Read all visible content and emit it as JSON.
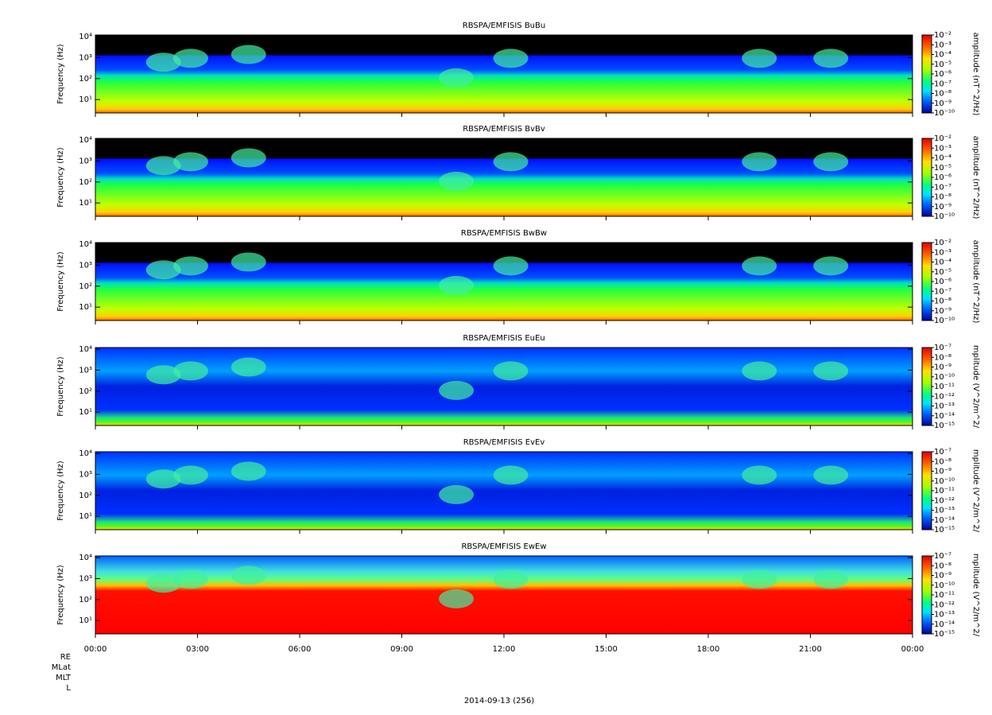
{
  "chart_data": [
    {
      "type": "spectrogram",
      "title": "RBSPA/EMFISIS  BuBu",
      "ylabel": "Frequency (Hz)",
      "log_y": true,
      "ylim": [
        2.3,
        12000
      ],
      "yticks": [
        {
          "value": 10,
          "label": "10¹"
        },
        {
          "value": 100,
          "label": "10²"
        },
        {
          "value": 1000,
          "label": "10³"
        },
        {
          "value": 10000,
          "label": "10⁴"
        }
      ],
      "xlim": [
        0,
        24
      ],
      "xticks": [
        {
          "value": 0,
          "label": "00:00"
        },
        {
          "value": 3,
          "label": "03:00"
        },
        {
          "value": 6,
          "label": "06:00"
        },
        {
          "value": 9,
          "label": "09:00"
        },
        {
          "value": 12,
          "label": "12:00"
        },
        {
          "value": 15,
          "label": "15:00"
        },
        {
          "value": 18,
          "label": "18:00"
        },
        {
          "value": 21,
          "label": "21:00"
        },
        {
          "value": 24,
          "label": "00:00"
        }
      ],
      "zlabel": "amplitude (nT^2/Hz)",
      "zlim": [
        1e-10,
        0.01
      ],
      "zticks": [
        {
          "value": 0.01,
          "label": "10⁻²"
        },
        {
          "value": 0.001,
          "label": "10⁻³"
        },
        {
          "value": 0.0001,
          "label": "10⁻⁴"
        },
        {
          "value": 1e-05,
          "label": "10⁻⁵"
        },
        {
          "value": 1e-06,
          "label": "10⁻⁶"
        },
        {
          "value": 1e-07,
          "label": "10⁻⁷"
        },
        {
          "value": 1e-08,
          "label": "10⁻⁸"
        },
        {
          "value": 1e-09,
          "label": "10⁻⁹"
        },
        {
          "value": 1e-10,
          "label": "10⁻¹⁰"
        }
      ]
    },
    {
      "type": "spectrogram",
      "title": "RBSPA/EMFISIS  BvBv",
      "ylabel": "Frequency (Hz)",
      "log_y": true,
      "ylim": [
        2.3,
        12000
      ],
      "yticks": [
        {
          "value": 10,
          "label": "10¹"
        },
        {
          "value": 100,
          "label": "10²"
        },
        {
          "value": 1000,
          "label": "10³"
        },
        {
          "value": 10000,
          "label": "10⁴"
        }
      ],
      "xlim": [
        0,
        24
      ],
      "xticks": [
        {
          "value": 0,
          "label": "00:00"
        },
        {
          "value": 3,
          "label": "03:00"
        },
        {
          "value": 6,
          "label": "06:00"
        },
        {
          "value": 9,
          "label": "09:00"
        },
        {
          "value": 12,
          "label": "12:00"
        },
        {
          "value": 15,
          "label": "15:00"
        },
        {
          "value": 18,
          "label": "18:00"
        },
        {
          "value": 21,
          "label": "21:00"
        },
        {
          "value": 24,
          "label": "00:00"
        }
      ],
      "zlabel": "amplitude (nT^2/Hz)",
      "zlim": [
        1e-10,
        0.01
      ],
      "zticks": [
        {
          "value": 0.01,
          "label": "10⁻²"
        },
        {
          "value": 0.001,
          "label": "10⁻³"
        },
        {
          "value": 0.0001,
          "label": "10⁻⁴"
        },
        {
          "value": 1e-05,
          "label": "10⁻⁵"
        },
        {
          "value": 1e-06,
          "label": "10⁻⁶"
        },
        {
          "value": 1e-07,
          "label": "10⁻⁷"
        },
        {
          "value": 1e-08,
          "label": "10⁻⁸"
        },
        {
          "value": 1e-09,
          "label": "10⁻⁹"
        },
        {
          "value": 1e-10,
          "label": "10⁻¹⁰"
        }
      ]
    },
    {
      "type": "spectrogram",
      "title": "RBSPA/EMFISIS  BwBw",
      "ylabel": "Frequency (Hz)",
      "log_y": true,
      "ylim": [
        2.3,
        12000
      ],
      "yticks": [
        {
          "value": 10,
          "label": "10¹"
        },
        {
          "value": 100,
          "label": "10²"
        },
        {
          "value": 1000,
          "label": "10³"
        },
        {
          "value": 10000,
          "label": "10⁴"
        }
      ],
      "xlim": [
        0,
        24
      ],
      "xticks": [
        {
          "value": 0,
          "label": "00:00"
        },
        {
          "value": 3,
          "label": "03:00"
        },
        {
          "value": 6,
          "label": "06:00"
        },
        {
          "value": 9,
          "label": "09:00"
        },
        {
          "value": 12,
          "label": "12:00"
        },
        {
          "value": 15,
          "label": "15:00"
        },
        {
          "value": 18,
          "label": "18:00"
        },
        {
          "value": 21,
          "label": "21:00"
        },
        {
          "value": 24,
          "label": "00:00"
        }
      ],
      "zlabel": "amplitude (nT^2/Hz)",
      "zlim": [
        1e-10,
        0.01
      ],
      "zticks": [
        {
          "value": 0.01,
          "label": "10⁻²"
        },
        {
          "value": 0.001,
          "label": "10⁻³"
        },
        {
          "value": 0.0001,
          "label": "10⁻⁴"
        },
        {
          "value": 1e-05,
          "label": "10⁻⁵"
        },
        {
          "value": 1e-06,
          "label": "10⁻⁶"
        },
        {
          "value": 1e-07,
          "label": "10⁻⁷"
        },
        {
          "value": 1e-08,
          "label": "10⁻⁸"
        },
        {
          "value": 1e-09,
          "label": "10⁻⁹"
        },
        {
          "value": 1e-10,
          "label": "10⁻¹⁰"
        }
      ]
    },
    {
      "type": "spectrogram",
      "title": "RBSPA/EMFISIS  EuEu",
      "ylabel": "Frequency (Hz)",
      "log_y": true,
      "ylim": [
        2.3,
        12000
      ],
      "yticks": [
        {
          "value": 10,
          "label": "10¹"
        },
        {
          "value": 100,
          "label": "10²"
        },
        {
          "value": 1000,
          "label": "10³"
        },
        {
          "value": 10000,
          "label": "10⁴"
        }
      ],
      "xlim": [
        0,
        24
      ],
      "xticks": [
        {
          "value": 0,
          "label": "00:00"
        },
        {
          "value": 3,
          "label": "03:00"
        },
        {
          "value": 6,
          "label": "06:00"
        },
        {
          "value": 9,
          "label": "09:00"
        },
        {
          "value": 12,
          "label": "12:00"
        },
        {
          "value": 15,
          "label": "15:00"
        },
        {
          "value": 18,
          "label": "18:00"
        },
        {
          "value": 21,
          "label": "21:00"
        },
        {
          "value": 24,
          "label": "00:00"
        }
      ],
      "zlabel": "mplitude (V^2/m^2/",
      "zlim": [
        1e-15,
        1e-07
      ],
      "zticks": [
        {
          "value": 1e-07,
          "label": "10⁻⁷"
        },
        {
          "value": 1e-08,
          "label": "10⁻⁸"
        },
        {
          "value": 1e-09,
          "label": "10⁻⁹"
        },
        {
          "value": 1e-10,
          "label": "10⁻¹⁰"
        },
        {
          "value": 1e-11,
          "label": "10⁻¹¹"
        },
        {
          "value": 1e-12,
          "label": "10⁻¹²"
        },
        {
          "value": 1e-13,
          "label": "10⁻¹³"
        },
        {
          "value": 1e-14,
          "label": "10⁻¹⁴"
        },
        {
          "value": 1e-15,
          "label": "10⁻¹⁵"
        }
      ]
    },
    {
      "type": "spectrogram",
      "title": "RBSPA/EMFISIS  EvEv",
      "ylabel": "Frequency (Hz)",
      "log_y": true,
      "ylim": [
        2.3,
        12000
      ],
      "yticks": [
        {
          "value": 10,
          "label": "10¹"
        },
        {
          "value": 100,
          "label": "10²"
        },
        {
          "value": 1000,
          "label": "10³"
        },
        {
          "value": 10000,
          "label": "10⁴"
        }
      ],
      "xlim": [
        0,
        24
      ],
      "xticks": [
        {
          "value": 0,
          "label": "00:00"
        },
        {
          "value": 3,
          "label": "03:00"
        },
        {
          "value": 6,
          "label": "06:00"
        },
        {
          "value": 9,
          "label": "09:00"
        },
        {
          "value": 12,
          "label": "12:00"
        },
        {
          "value": 15,
          "label": "15:00"
        },
        {
          "value": 18,
          "label": "18:00"
        },
        {
          "value": 21,
          "label": "21:00"
        },
        {
          "value": 24,
          "label": "00:00"
        }
      ],
      "zlabel": "mplitude (V^2/m^2/",
      "zlim": [
        1e-15,
        1e-07
      ],
      "zticks": [
        {
          "value": 1e-07,
          "label": "10⁻⁷"
        },
        {
          "value": 1e-08,
          "label": "10⁻⁸"
        },
        {
          "value": 1e-09,
          "label": "10⁻⁹"
        },
        {
          "value": 1e-10,
          "label": "10⁻¹⁰"
        },
        {
          "value": 1e-11,
          "label": "10⁻¹¹"
        },
        {
          "value": 1e-12,
          "label": "10⁻¹²"
        },
        {
          "value": 1e-13,
          "label": "10⁻¹³"
        },
        {
          "value": 1e-14,
          "label": "10⁻¹⁴"
        },
        {
          "value": 1e-15,
          "label": "10⁻¹⁵"
        }
      ]
    },
    {
      "type": "spectrogram",
      "title": "RBSPA/EMFISIS  EwEw",
      "ylabel": "Frequency (Hz)",
      "log_y": true,
      "ylim": [
        2.3,
        12000
      ],
      "yticks": [
        {
          "value": 10,
          "label": "10¹"
        },
        {
          "value": 100,
          "label": "10²"
        },
        {
          "value": 1000,
          "label": "10³"
        },
        {
          "value": 10000,
          "label": "10⁴"
        }
      ],
      "xlim": [
        0,
        24
      ],
      "xticks": [
        {
          "value": 0,
          "label": "00:00"
        },
        {
          "value": 3,
          "label": "03:00"
        },
        {
          "value": 6,
          "label": "06:00"
        },
        {
          "value": 9,
          "label": "09:00"
        },
        {
          "value": 12,
          "label": "12:00"
        },
        {
          "value": 15,
          "label": "15:00"
        },
        {
          "value": 18,
          "label": "18:00"
        },
        {
          "value": 21,
          "label": "21:00"
        },
        {
          "value": 24,
          "label": "00:00"
        }
      ],
      "xlabel": "2014-09-13 (256)",
      "zlabel": "mplitude (V^2/m^2/",
      "zlim": [
        1e-15,
        1e-07
      ],
      "zticks": [
        {
          "value": 1e-07,
          "label": "10⁻⁷"
        },
        {
          "value": 1e-08,
          "label": "10⁻⁸"
        },
        {
          "value": 1e-09,
          "label": "10⁻⁹"
        },
        {
          "value": 1e-10,
          "label": "10⁻¹⁰"
        },
        {
          "value": 1e-11,
          "label": "10⁻¹¹"
        },
        {
          "value": 1e-12,
          "label": "10⁻¹²"
        },
        {
          "value": 1e-13,
          "label": "10⁻¹³"
        },
        {
          "value": 1e-14,
          "label": "10⁻¹⁴"
        },
        {
          "value": 1e-15,
          "label": "10⁻¹⁵"
        }
      ]
    }
  ],
  "ephemeris_labels": [
    "RE",
    "MLat",
    "MLT",
    "L"
  ]
}
